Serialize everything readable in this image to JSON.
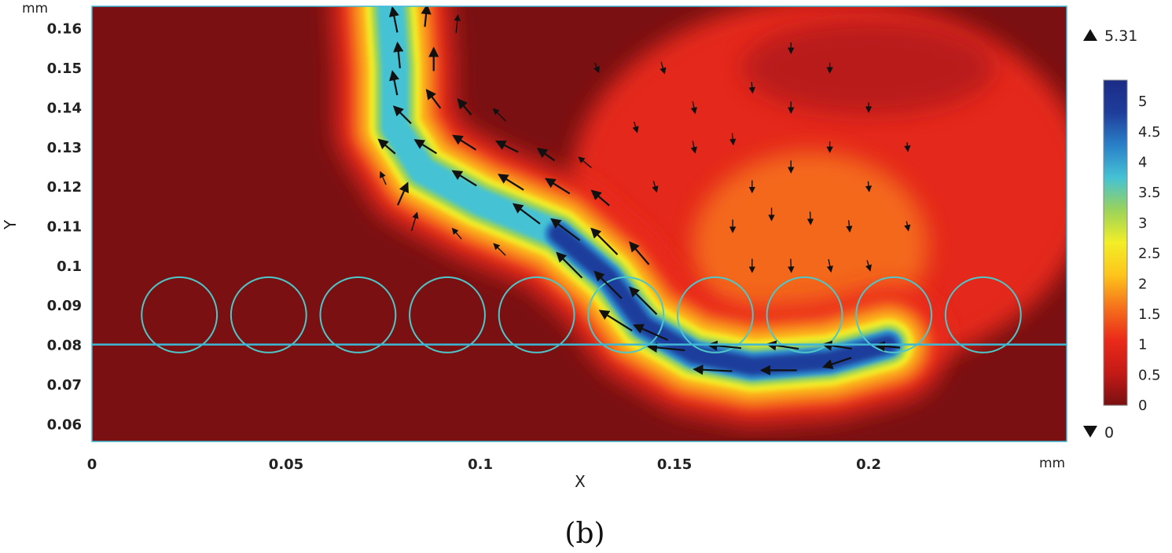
{
  "chart_data": {
    "type": "heatmap",
    "xlabel": "X",
    "ylabel": "Y",
    "x_unit": "mm",
    "y_unit": "mm",
    "xlim": [
      0,
      0.251
    ],
    "ylim": [
      0.0555,
      0.1655
    ],
    "x_ticks": [
      0,
      0.05,
      0.1,
      0.15,
      0.2
    ],
    "x_tick_labels": [
      "0",
      "0.05",
      "0.1",
      "0.15",
      "0.2"
    ],
    "y_ticks": [
      0.06,
      0.07,
      0.08,
      0.09,
      0.1,
      0.11,
      0.12,
      0.13,
      0.14,
      0.15,
      0.16
    ],
    "y_tick_labels": [
      "0.06",
      "0.07",
      "0.08",
      "0.09",
      "0.1",
      "0.11",
      "0.12",
      "0.13",
      "0.14",
      "0.15",
      "0.16"
    ],
    "colorbar": {
      "min": 0,
      "max": 5.31,
      "max_label": "5.31",
      "min_label": "0",
      "ticks": [
        0,
        0.5,
        1,
        1.5,
        2,
        2.5,
        3,
        3.5,
        4,
        4.5,
        5
      ],
      "tick_labels": [
        "0",
        "0.5",
        "1",
        "1.5",
        "2",
        "2.5",
        "3",
        "3.5",
        "4",
        "4.5",
        "5"
      ],
      "colormap": [
        "#7a1012",
        "#c41a16",
        "#ea2a1a",
        "#f5701c",
        "#fdc41b",
        "#f3ee27",
        "#9bd35a",
        "#45c2d4",
        "#2a80c8",
        "#1f3d9b",
        "#1b2b86"
      ]
    },
    "substrate_line_y": 0.08,
    "particles": [
      {
        "cx": 0.0225,
        "cy": 0.0875,
        "r": 0.0097
      },
      {
        "cx": 0.0455,
        "cy": 0.0875,
        "r": 0.0097
      },
      {
        "cx": 0.0685,
        "cy": 0.0875,
        "r": 0.0097
      },
      {
        "cx": 0.0915,
        "cy": 0.0875,
        "r": 0.0097
      },
      {
        "cx": 0.1145,
        "cy": 0.0875,
        "r": 0.0097
      },
      {
        "cx": 0.1375,
        "cy": 0.0875,
        "r": 0.0097
      },
      {
        "cx": 0.1605,
        "cy": 0.0875,
        "r": 0.0097
      },
      {
        "cx": 0.1835,
        "cy": 0.0875,
        "r": 0.0097
      },
      {
        "cx": 0.2065,
        "cy": 0.0875,
        "r": 0.0097
      },
      {
        "cx": 0.2295,
        "cy": 0.0875,
        "r": 0.0097
      }
    ],
    "high_velocity_jet": [
      [
        0.077,
        0.165
      ],
      [
        0.078,
        0.15
      ],
      [
        0.078,
        0.135
      ],
      [
        0.085,
        0.124
      ],
      [
        0.1,
        0.116
      ],
      [
        0.12,
        0.108
      ],
      [
        0.133,
        0.097
      ],
      [
        0.142,
        0.085
      ],
      [
        0.155,
        0.0775
      ],
      [
        0.17,
        0.0745
      ],
      [
        0.19,
        0.076
      ],
      [
        0.205,
        0.08
      ]
    ],
    "vectors": [
      {
        "x": 0.078,
        "y": 0.162,
        "u": -0.2,
        "v": 1,
        "m": 3.0
      },
      {
        "x": 0.086,
        "y": 0.163,
        "u": 0.1,
        "v": 1,
        "m": 2.4
      },
      {
        "x": 0.094,
        "y": 0.161,
        "u": 0.1,
        "v": 1,
        "m": 1.8
      },
      {
        "x": 0.079,
        "y": 0.153,
        "u": -0.1,
        "v": 1,
        "m": 3.0
      },
      {
        "x": 0.088,
        "y": 0.152,
        "u": 0.0,
        "v": 1,
        "m": 2.6
      },
      {
        "x": 0.078,
        "y": 0.146,
        "u": -0.2,
        "v": 1,
        "m": 2.8
      },
      {
        "x": 0.08,
        "y": 0.138,
        "u": -0.7,
        "v": 0.7,
        "m": 2.8
      },
      {
        "x": 0.088,
        "y": 0.142,
        "u": -0.6,
        "v": 0.8,
        "m": 2.6
      },
      {
        "x": 0.096,
        "y": 0.14,
        "u": -0.6,
        "v": 0.7,
        "m": 2.2
      },
      {
        "x": 0.105,
        "y": 0.138,
        "u": -0.6,
        "v": 0.6,
        "m": 1.8
      },
      {
        "x": 0.076,
        "y": 0.13,
        "u": -0.7,
        "v": 0.6,
        "m": 2.4
      },
      {
        "x": 0.086,
        "y": 0.13,
        "u": -0.8,
        "v": 0.5,
        "m": 3.0
      },
      {
        "x": 0.096,
        "y": 0.131,
        "u": -0.8,
        "v": 0.5,
        "m": 3.2
      },
      {
        "x": 0.107,
        "y": 0.13,
        "u": -0.8,
        "v": 0.4,
        "m": 2.8
      },
      {
        "x": 0.117,
        "y": 0.128,
        "u": -0.7,
        "v": 0.5,
        "m": 2.2
      },
      {
        "x": 0.127,
        "y": 0.126,
        "u": -0.6,
        "v": 0.5,
        "m": 1.6
      },
      {
        "x": 0.08,
        "y": 0.118,
        "u": 0.4,
        "v": 0.9,
        "m": 2.8
      },
      {
        "x": 0.096,
        "y": 0.122,
        "u": -0.8,
        "v": 0.5,
        "m": 3.4
      },
      {
        "x": 0.108,
        "y": 0.121,
        "u": -0.8,
        "v": 0.5,
        "m": 3.6
      },
      {
        "x": 0.12,
        "y": 0.12,
        "u": -0.8,
        "v": 0.5,
        "m": 3.4
      },
      {
        "x": 0.131,
        "y": 0.117,
        "u": -0.7,
        "v": 0.6,
        "m": 2.6
      },
      {
        "x": 0.083,
        "y": 0.111,
        "u": 0.3,
        "v": 1,
        "m": 2.0
      },
      {
        "x": 0.112,
        "y": 0.113,
        "u": -0.8,
        "v": 0.6,
        "m": 4.2
      },
      {
        "x": 0.122,
        "y": 0.109,
        "u": -0.8,
        "v": 0.6,
        "m": 4.6
      },
      {
        "x": 0.132,
        "y": 0.106,
        "u": -0.7,
        "v": 0.7,
        "m": 4.8
      },
      {
        "x": 0.141,
        "y": 0.103,
        "u": -0.6,
        "v": 0.7,
        "m": 3.6
      },
      {
        "x": 0.123,
        "y": 0.1,
        "u": -0.7,
        "v": 0.7,
        "m": 4.6
      },
      {
        "x": 0.133,
        "y": 0.095,
        "u": -0.7,
        "v": 0.7,
        "m": 5.0
      },
      {
        "x": 0.142,
        "y": 0.091,
        "u": -0.7,
        "v": 0.7,
        "m": 5.0
      },
      {
        "x": 0.135,
        "y": 0.086,
        "u": -0.8,
        "v": 0.5,
        "m": 5.0
      },
      {
        "x": 0.144,
        "y": 0.083,
        "u": -0.9,
        "v": 0.4,
        "m": 4.8
      },
      {
        "x": 0.148,
        "y": 0.079,
        "u": -1,
        "v": 0.1,
        "m": 4.8
      },
      {
        "x": 0.163,
        "y": 0.0795,
        "u": -1,
        "v": 0.1,
        "m": 4.2
      },
      {
        "x": 0.178,
        "y": 0.0795,
        "u": -1,
        "v": 0.15,
        "m": 4.0
      },
      {
        "x": 0.192,
        "y": 0.0795,
        "u": -1,
        "v": 0.15,
        "m": 3.6
      },
      {
        "x": 0.205,
        "y": 0.0795,
        "u": -1,
        "v": 0.1,
        "m": 2.8
      },
      {
        "x": 0.16,
        "y": 0.0735,
        "u": -1,
        "v": 0.05,
        "m": 5.0
      },
      {
        "x": 0.177,
        "y": 0.0735,
        "u": -1,
        "v": 0.0,
        "m": 4.6
      },
      {
        "x": 0.192,
        "y": 0.0755,
        "u": -0.9,
        "v": -0.3,
        "m": 3.6
      },
      {
        "x": 0.105,
        "y": 0.104,
        "u": -0.7,
        "v": 0.7,
        "m": 1.6
      },
      {
        "x": 0.147,
        "y": 0.15,
        "u": 0.3,
        "v": -1,
        "m": 0.9
      },
      {
        "x": 0.155,
        "y": 0.14,
        "u": 0.2,
        "v": -1,
        "m": 0.9
      },
      {
        "x": 0.165,
        "y": 0.132,
        "u": 0.1,
        "v": -1,
        "m": 0.8
      },
      {
        "x": 0.155,
        "y": 0.13,
        "u": 0.2,
        "v": -1,
        "m": 0.9
      },
      {
        "x": 0.17,
        "y": 0.145,
        "u": 0.1,
        "v": -1,
        "m": 0.7
      },
      {
        "x": 0.18,
        "y": 0.155,
        "u": 0.0,
        "v": -1,
        "m": 0.7
      },
      {
        "x": 0.18,
        "y": 0.14,
        "u": 0.0,
        "v": -1,
        "m": 0.8
      },
      {
        "x": 0.19,
        "y": 0.15,
        "u": 0.0,
        "v": -1,
        "m": 0.6
      },
      {
        "x": 0.2,
        "y": 0.14,
        "u": 0.0,
        "v": -1,
        "m": 0.5
      },
      {
        "x": 0.17,
        "y": 0.12,
        "u": 0.0,
        "v": -1,
        "m": 0.9
      },
      {
        "x": 0.18,
        "y": 0.125,
        "u": 0.0,
        "v": -1,
        "m": 0.9
      },
      {
        "x": 0.19,
        "y": 0.13,
        "u": 0.0,
        "v": -1,
        "m": 0.7
      },
      {
        "x": 0.2,
        "y": 0.12,
        "u": 0.1,
        "v": -1,
        "m": 0.6
      },
      {
        "x": 0.165,
        "y": 0.11,
        "u": 0.0,
        "v": -1,
        "m": 1.0
      },
      {
        "x": 0.175,
        "y": 0.113,
        "u": 0.0,
        "v": -1,
        "m": 1.0
      },
      {
        "x": 0.185,
        "y": 0.112,
        "u": 0.05,
        "v": -1,
        "m": 1.0
      },
      {
        "x": 0.195,
        "y": 0.11,
        "u": 0.1,
        "v": -1,
        "m": 0.8
      },
      {
        "x": 0.21,
        "y": 0.11,
        "u": 0.2,
        "v": -1,
        "m": 0.5
      },
      {
        "x": 0.17,
        "y": 0.1,
        "u": 0.0,
        "v": -1,
        "m": 1.1
      },
      {
        "x": 0.18,
        "y": 0.1,
        "u": 0.05,
        "v": -1,
        "m": 1.1
      },
      {
        "x": 0.19,
        "y": 0.1,
        "u": 0.2,
        "v": -1,
        "m": 1.0
      },
      {
        "x": 0.2,
        "y": 0.1,
        "u": 0.3,
        "v": -1,
        "m": 0.7
      },
      {
        "x": 0.145,
        "y": 0.12,
        "u": 0.3,
        "v": -1,
        "m": 0.8
      },
      {
        "x": 0.14,
        "y": 0.135,
        "u": 0.3,
        "v": -1,
        "m": 0.7
      },
      {
        "x": 0.13,
        "y": 0.15,
        "u": 0.4,
        "v": -1,
        "m": 0.6
      },
      {
        "x": 0.21,
        "y": 0.13,
        "u": 0.1,
        "v": -1,
        "m": 0.4
      },
      {
        "x": 0.075,
        "y": 0.122,
        "u": -0.4,
        "v": 0.9,
        "m": 1.2
      },
      {
        "x": 0.094,
        "y": 0.108,
        "u": -0.6,
        "v": 0.7,
        "m": 1.2
      }
    ]
  },
  "caption": "(b)"
}
